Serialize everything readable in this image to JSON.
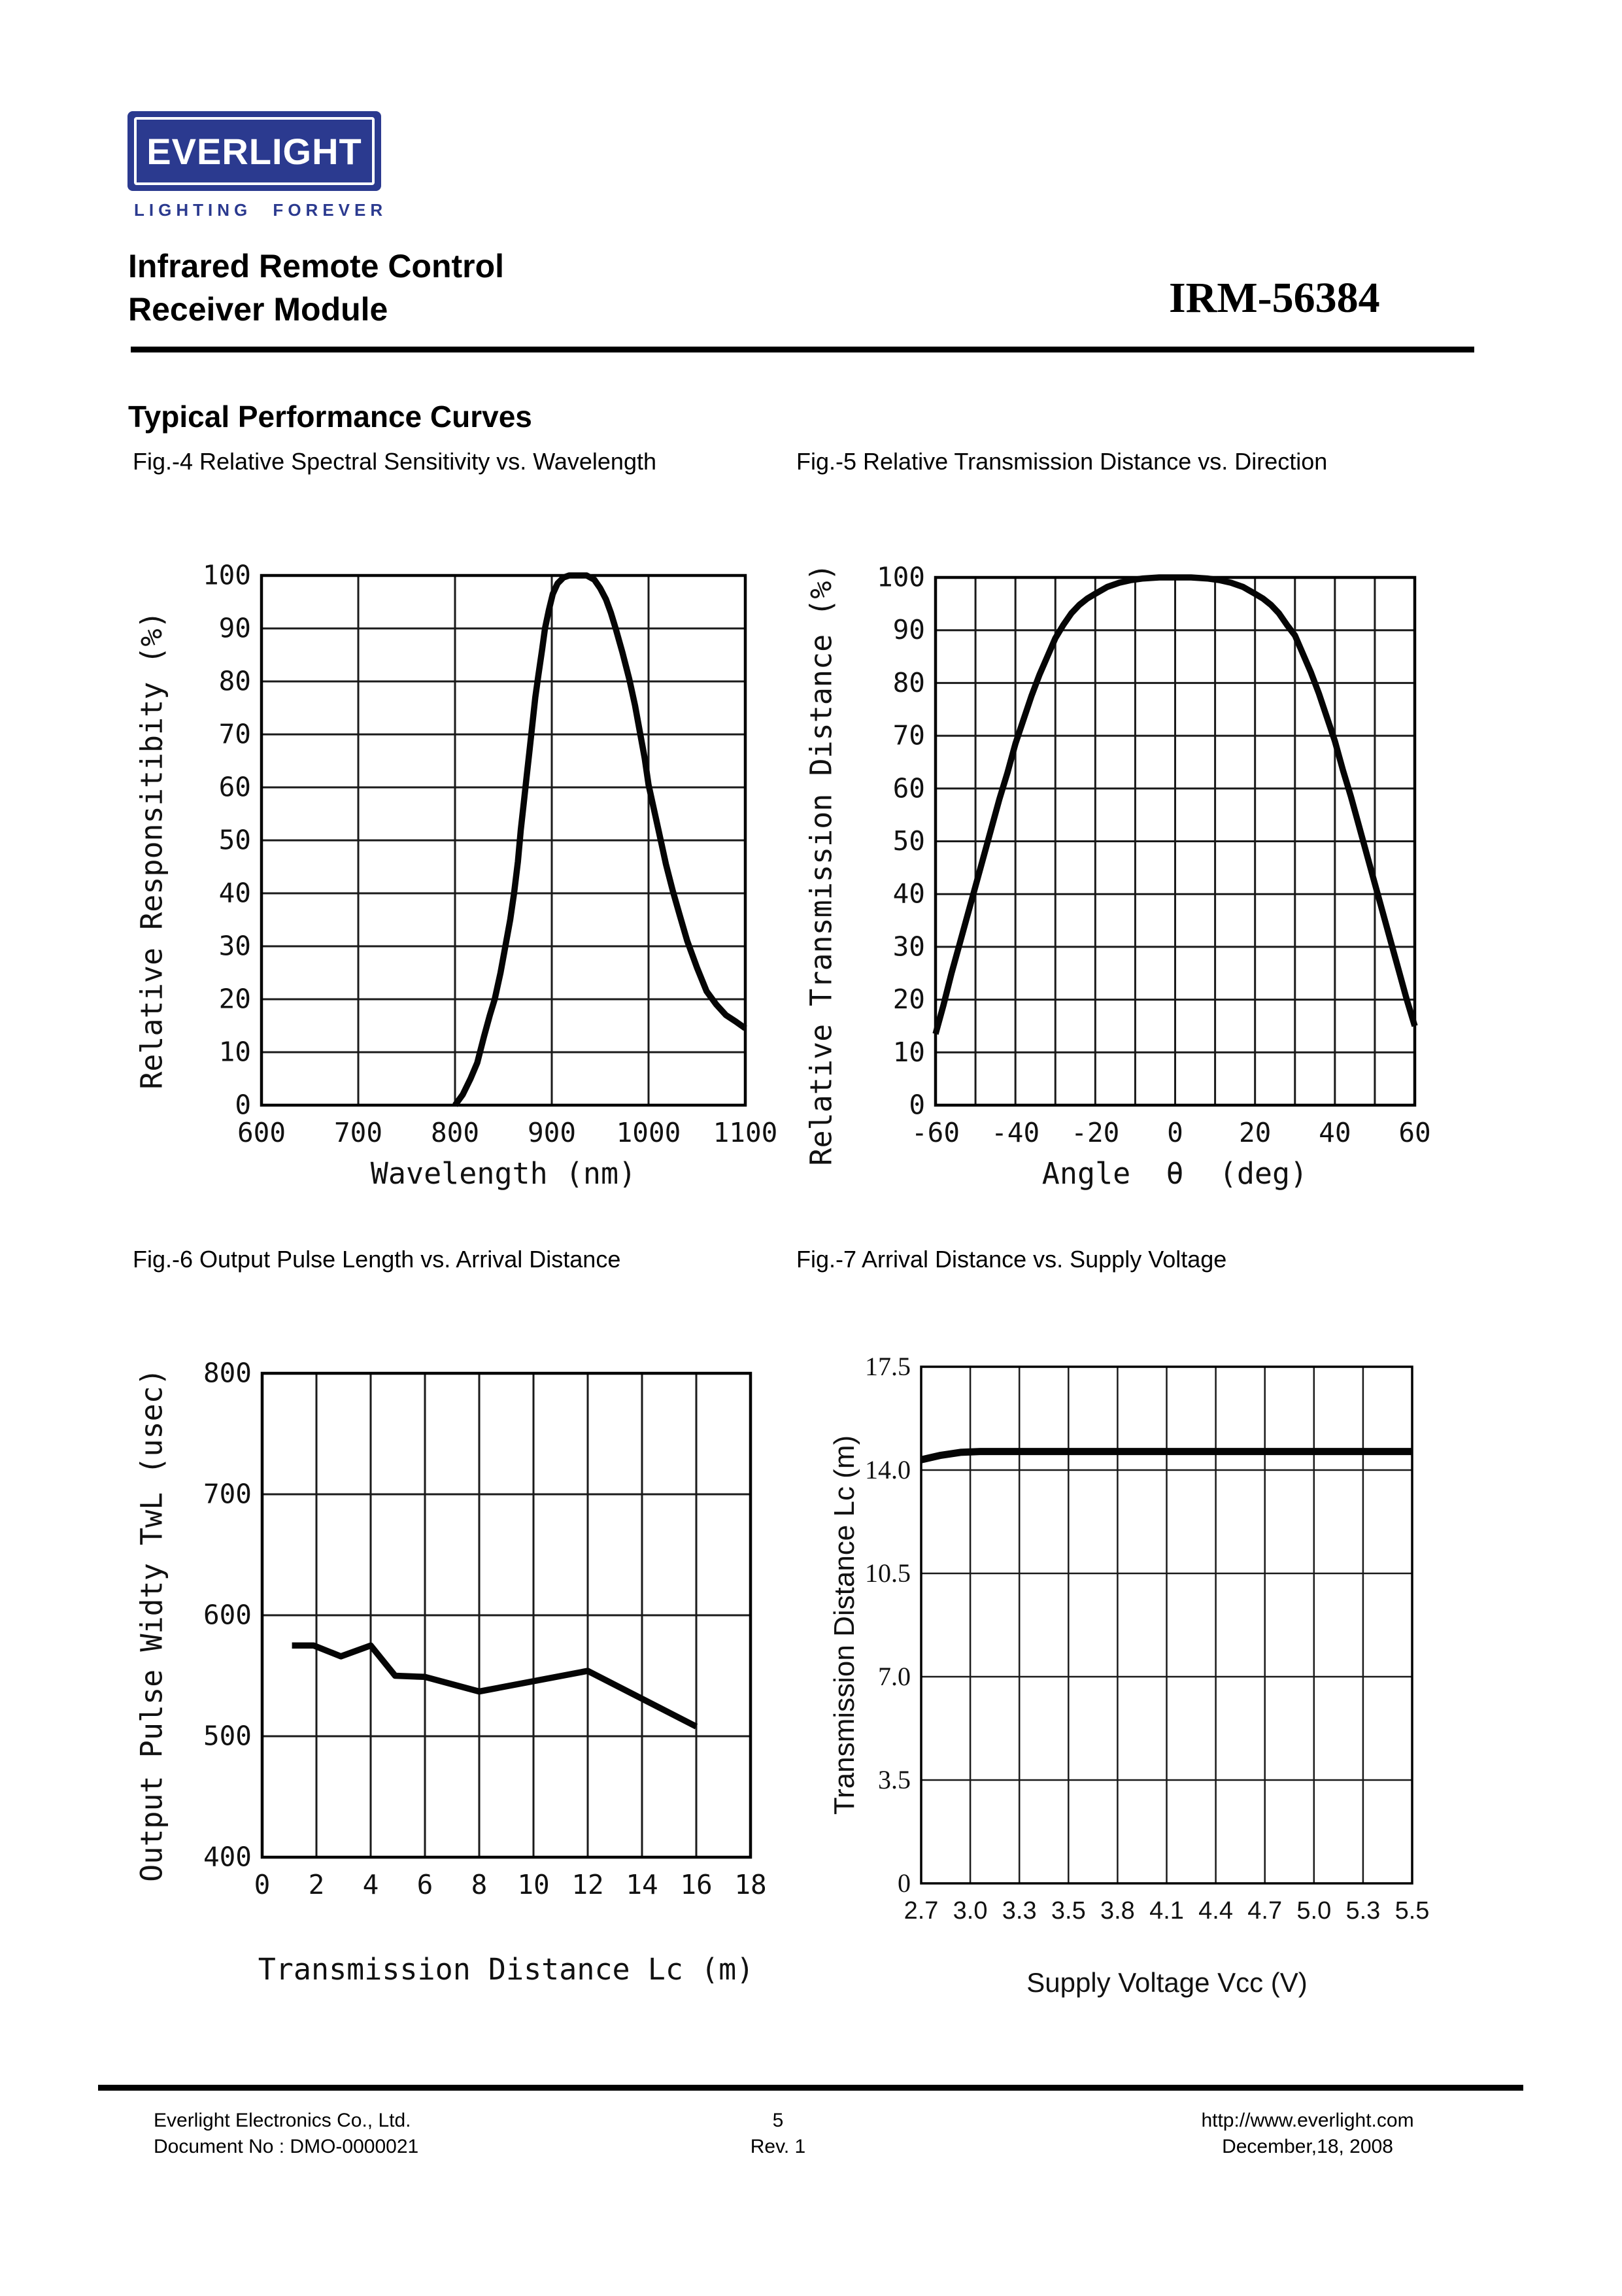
{
  "header": {
    "logo": {
      "brand": "EVERLIGHT",
      "tagline": "LIGHTING FOREVER",
      "brand_color": "#2b3a8f"
    },
    "product_line1": "Infrared Remote Control",
    "product_line2": "Receiver Module",
    "part_number": "IRM-56384",
    "section_title": "Typical Performance Curves"
  },
  "footer": {
    "company": "Everlight Electronics Co., Ltd.",
    "document_no": "Document No : DMO-0000021",
    "page_number": "5",
    "revision": "Rev. 1",
    "website": "http://www.everlight.com",
    "date": "December,18, 2008"
  },
  "chart_data": [
    {
      "name": "fig4",
      "type": "line",
      "caption": "Fig.-4 Relative Spectral Sensitivity vs. Wavelength",
      "xlabel": "Wavelength (nm)",
      "ylabel": "Relative Responsitibity (%)",
      "xlim": [
        600,
        1100
      ],
      "ylim": [
        0,
        100
      ],
      "x_divisions": 5,
      "y_divisions": 10,
      "x_ticks": [
        "600",
        "700",
        "800",
        "900",
        "1000",
        "1100"
      ],
      "y_ticks": [
        "0",
        "10",
        "20",
        "30",
        "40",
        "50",
        "60",
        "70",
        "80",
        "90",
        "100"
      ],
      "grid": true,
      "points": [
        [
          800,
          0
        ],
        [
          808,
          2
        ],
        [
          816,
          5
        ],
        [
          823,
          8
        ],
        [
          830,
          13
        ],
        [
          836,
          17
        ],
        [
          841,
          20
        ],
        [
          847,
          25
        ],
        [
          852,
          30
        ],
        [
          857,
          35
        ],
        [
          861,
          40
        ],
        [
          865,
          46
        ],
        [
          868,
          52
        ],
        [
          871,
          57
        ],
        [
          874,
          62
        ],
        [
          877,
          67
        ],
        [
          880,
          72
        ],
        [
          883,
          77
        ],
        [
          886,
          81
        ],
        [
          890,
          86
        ],
        [
          893,
          90
        ],
        [
          897,
          93.5
        ],
        [
          901,
          96.5
        ],
        [
          906,
          98.5
        ],
        [
          912,
          99.6
        ],
        [
          918,
          100
        ],
        [
          936,
          100
        ],
        [
          944,
          99.2
        ],
        [
          950,
          97.6
        ],
        [
          956,
          95.5
        ],
        [
          961,
          93
        ],
        [
          966,
          90
        ],
        [
          973,
          85.5
        ],
        [
          980,
          80.5
        ],
        [
          986,
          75.5
        ],
        [
          991,
          70.5
        ],
        [
          996,
          65.5
        ],
        [
          1000,
          60.5
        ],
        [
          1006,
          55.5
        ],
        [
          1012,
          50.5
        ],
        [
          1018,
          45.5
        ],
        [
          1025,
          40.5
        ],
        [
          1032,
          36
        ],
        [
          1040,
          31
        ],
        [
          1050,
          26
        ],
        [
          1060,
          21.5
        ],
        [
          1070,
          19
        ],
        [
          1080,
          17
        ],
        [
          1090,
          15.8
        ],
        [
          1100,
          14.5
        ]
      ]
    },
    {
      "name": "fig5",
      "type": "line",
      "caption": "Fig.-5 Relative Transmission Distance vs. Direction",
      "xlabel": "Angle  θ  (deg)",
      "ylabel": "Relative Transmission Distance (%)",
      "xlim": [
        -60,
        60
      ],
      "ylim": [
        0,
        100
      ],
      "x_divisions": 12,
      "y_divisions": 10,
      "x_ticks": [
        "-60",
        "-40",
        "-20",
        "0",
        "20",
        "40",
        "60"
      ],
      "y_ticks": [
        "0",
        "10",
        "20",
        "30",
        "40",
        "50",
        "60",
        "70",
        "80",
        "90",
        "100"
      ],
      "grid": true,
      "points": [
        [
          -60,
          13.5
        ],
        [
          -58,
          19
        ],
        [
          -56,
          25
        ],
        [
          -54,
          30.5
        ],
        [
          -52,
          36
        ],
        [
          -50,
          41.5
        ],
        [
          -48,
          47
        ],
        [
          -46,
          52.5
        ],
        [
          -44,
          58
        ],
        [
          -42,
          63
        ],
        [
          -40,
          68.5
        ],
        [
          -38,
          73
        ],
        [
          -36,
          77.5
        ],
        [
          -34,
          81.5
        ],
        [
          -32,
          85
        ],
        [
          -30,
          88.5
        ],
        [
          -28,
          91
        ],
        [
          -26,
          93.2
        ],
        [
          -24,
          94.8
        ],
        [
          -22,
          96
        ],
        [
          -20,
          96.9
        ],
        [
          -17,
          98.2
        ],
        [
          -14,
          99
        ],
        [
          -11,
          99.5
        ],
        [
          -8,
          99.8
        ],
        [
          -4,
          100
        ],
        [
          0,
          100
        ],
        [
          4,
          100
        ],
        [
          8,
          99.8
        ],
        [
          11,
          99.5
        ],
        [
          14,
          99
        ],
        [
          17,
          98.2
        ],
        [
          20,
          96.9
        ],
        [
          22,
          96
        ],
        [
          24,
          94.8
        ],
        [
          26,
          93.2
        ],
        [
          28,
          91
        ],
        [
          30,
          89
        ],
        [
          32,
          85.5
        ],
        [
          34,
          82
        ],
        [
          36,
          78
        ],
        [
          38,
          73.5
        ],
        [
          40,
          69
        ],
        [
          42,
          63.5
        ],
        [
          44,
          58.5
        ],
        [
          46,
          53
        ],
        [
          48,
          47.5
        ],
        [
          50,
          42
        ],
        [
          52,
          36.5
        ],
        [
          54,
          31
        ],
        [
          56,
          25.5
        ],
        [
          58,
          20
        ],
        [
          60,
          15
        ]
      ]
    },
    {
      "name": "fig6",
      "type": "line",
      "caption": "Fig.-6 Output Pulse Length vs. Arrival Distance",
      "xlabel": "Transmission Distance Lc (m)",
      "ylabel": "Output Pulse Widty TwL (usec)",
      "xlim": [
        0,
        18
      ],
      "ylim": [
        400,
        800
      ],
      "x_divisions": 9,
      "y_divisions": 4,
      "x_ticks": [
        "0",
        "2",
        "4",
        "6",
        "8",
        "10",
        "12",
        "14",
        "16",
        "18"
      ],
      "y_ticks": [
        "400",
        "500",
        "600",
        "700",
        "800"
      ],
      "grid": true,
      "points": [
        [
          1.1,
          575
        ],
        [
          1.9,
          575
        ],
        [
          2.9,
          566
        ],
        [
          4,
          575
        ],
        [
          4.9,
          550
        ],
        [
          6,
          549
        ],
        [
          8,
          537
        ],
        [
          12,
          554
        ],
        [
          16,
          508
        ]
      ]
    },
    {
      "name": "fig7",
      "type": "line",
      "caption": "Fig.-7 Arrival Distance vs. Supply Voltage",
      "xlabel": "Supply Voltage Vcc (V)",
      "ylabel": "Transmission Distance Lc (m)",
      "x_axis_note": "ticks evenly spaced, non-linear voltage scale",
      "xlim": [
        0,
        10
      ],
      "ylim": [
        0,
        17.5
      ],
      "x_divisions": 10,
      "y_divisions": 5,
      "x_ticks": [
        "2.7",
        "3.0",
        "3.3",
        "3.5",
        "3.8",
        "4.1",
        "4.4",
        "4.7",
        "5.0",
        "5.3",
        "5.5"
      ],
      "y_ticks": [
        "0",
        "3.5",
        "7.0",
        "10.5",
        "14.0",
        "17.5"
      ],
      "grid": true,
      "points": [
        [
          0,
          14.35
        ],
        [
          0.4,
          14.5
        ],
        [
          0.8,
          14.6
        ],
        [
          1.2,
          14.63
        ],
        [
          10,
          14.63
        ]
      ],
      "values_by_voltage": [
        [
          2.7,
          14.35
        ],
        [
          3.0,
          14.6
        ],
        [
          3.5,
          14.6
        ],
        [
          4.1,
          14.6
        ],
        [
          4.7,
          14.6
        ],
        [
          5.0,
          14.6
        ],
        [
          5.5,
          14.6
        ]
      ]
    }
  ]
}
